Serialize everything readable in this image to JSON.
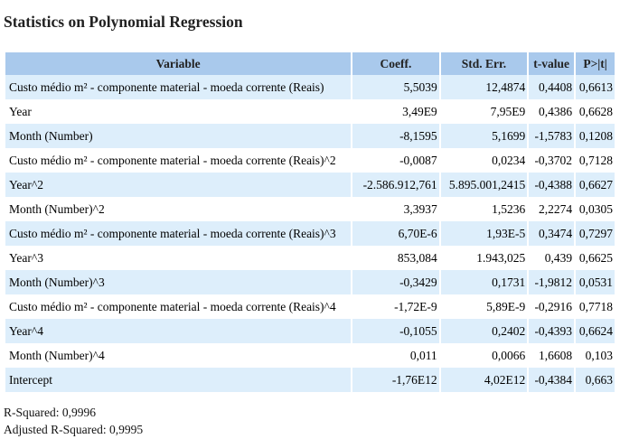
{
  "title": "Statistics on Polynomial Regression",
  "headers": [
    "Variable",
    "Coeff.",
    "Std. Err.",
    "t-value",
    "P>|t|"
  ],
  "rows": [
    [
      "Custo médio m² - componente material - moeda corrente (Reais)",
      "5,5039",
      "12,4874",
      "0,4408",
      "0,6613"
    ],
    [
      "Year",
      "3,49E9",
      "7,95E9",
      "0,4386",
      "0,6628"
    ],
    [
      "Month (Number)",
      "-8,1595",
      "5,1699",
      "-1,5783",
      "0,1208"
    ],
    [
      "Custo médio m² - componente material - moeda corrente (Reais)^2",
      "-0,0087",
      "0,0234",
      "-0,3702",
      "0,7128"
    ],
    [
      "Year^2",
      "-2.586.912,761",
      "5.895.001,2415",
      "-0,4388",
      "0,6627"
    ],
    [
      "Month (Number)^2",
      "3,3937",
      "1,5236",
      "2,2274",
      "0,0305"
    ],
    [
      "Custo médio m² - componente material - moeda corrente (Reais)^3",
      "6,70E-6",
      "1,93E-5",
      "0,3474",
      "0,7297"
    ],
    [
      "Year^3",
      "853,084",
      "1.943,025",
      "0,439",
      "0,6625"
    ],
    [
      "Month (Number)^3",
      "-0,3429",
      "0,1731",
      "-1,9812",
      "0,0531"
    ],
    [
      "Custo médio m² - componente material - moeda corrente (Reais)^4",
      "-1,72E-9",
      "5,89E-9",
      "-0,2916",
      "0,7718"
    ],
    [
      "Year^4",
      "-0,1055",
      "0,2402",
      "-0,4393",
      "0,6624"
    ],
    [
      "Month (Number)^4",
      "0,011",
      "0,0066",
      "1,6608",
      "0,103"
    ],
    [
      "Intercept",
      "-1,76E12",
      "4,02E12",
      "-0,4384",
      "0,663"
    ]
  ],
  "footer": {
    "r_squared": "R-Squared: 0,9996",
    "adjusted_r_squared": "Adjusted R-Squared: 0,9995"
  }
}
